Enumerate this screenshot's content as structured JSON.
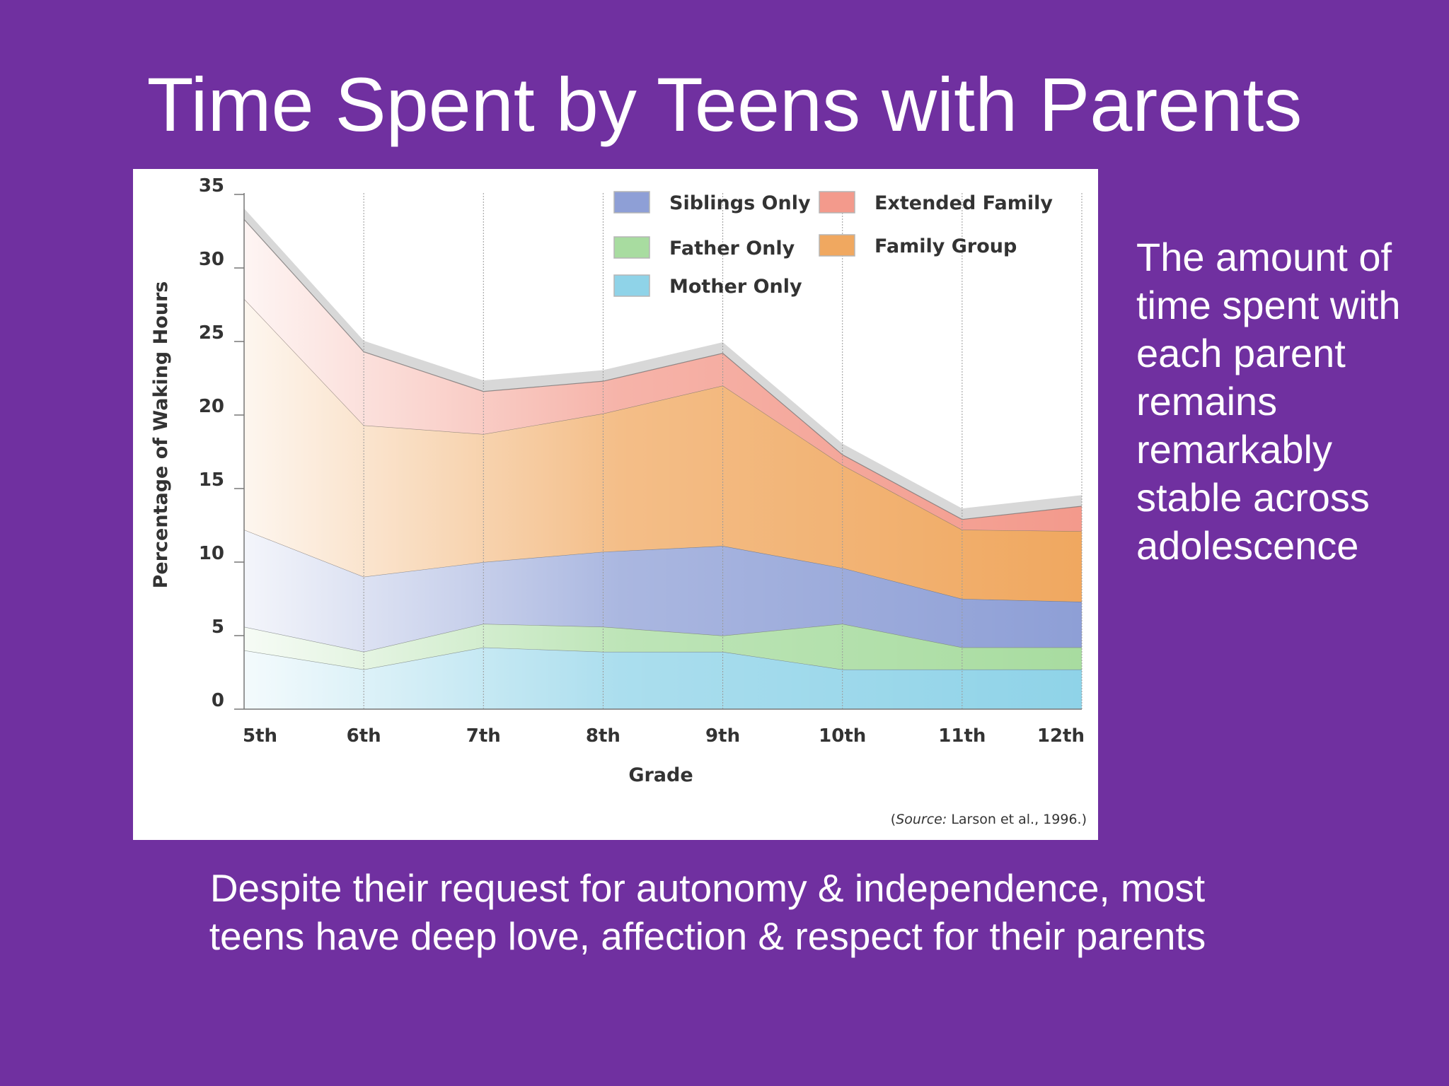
{
  "slide": {
    "title": "Time Spent by Teens with Parents",
    "side_note": "The amount of time spent with each parent remains remarkably stable across adolescence",
    "caption_lines": [
      "Despite their request for autonomy & independence, most",
      "teens have deep love, affection & respect for their parents"
    ]
  },
  "chart_data": {
    "type": "area",
    "stacked": true,
    "categories": [
      "5th",
      "6th",
      "7th",
      "8th",
      "9th",
      "10th",
      "11th",
      "12th"
    ],
    "xlabel": "Grade",
    "ylabel": "Percentage of Waking Hours",
    "ylim": [
      0,
      35
    ],
    "yticks": [
      0,
      5,
      10,
      15,
      20,
      25,
      30,
      35
    ],
    "grid": "vertical",
    "legend_position": "top-right",
    "source_label": "Source:",
    "source_text": "Larson et al., 1996.",
    "series": [
      {
        "name": "Mother Only",
        "color": "#8fd3e8",
        "values": [
          4.0,
          2.7,
          4.2,
          3.9,
          3.9,
          2.7,
          2.7,
          2.7
        ]
      },
      {
        "name": "Father Only",
        "color": "#a8dca0",
        "values": [
          1.6,
          1.2,
          1.6,
          1.7,
          1.1,
          3.1,
          1.5,
          1.5
        ]
      },
      {
        "name": "Siblings Only",
        "color": "#8e9fd6",
        "values": [
          6.6,
          5.1,
          4.2,
          5.1,
          6.1,
          3.8,
          3.3,
          3.1
        ]
      },
      {
        "name": "Family Group",
        "color": "#f0a860",
        "values": [
          15.7,
          10.3,
          8.7,
          9.4,
          10.9,
          7.0,
          4.7,
          4.8
        ]
      },
      {
        "name": "Extended Family",
        "color": "#f39a8c",
        "values": [
          5.4,
          5.0,
          2.9,
          2.2,
          2.2,
          0.7,
          0.7,
          1.7
        ]
      }
    ],
    "legend_order": [
      "Siblings Only",
      "Extended Family",
      "Father Only",
      "Family Group",
      "Mother Only"
    ],
    "colors": {
      "top_band": "#d8d8d8",
      "axis": "#777777",
      "grid": "#9a9a9a"
    }
  }
}
